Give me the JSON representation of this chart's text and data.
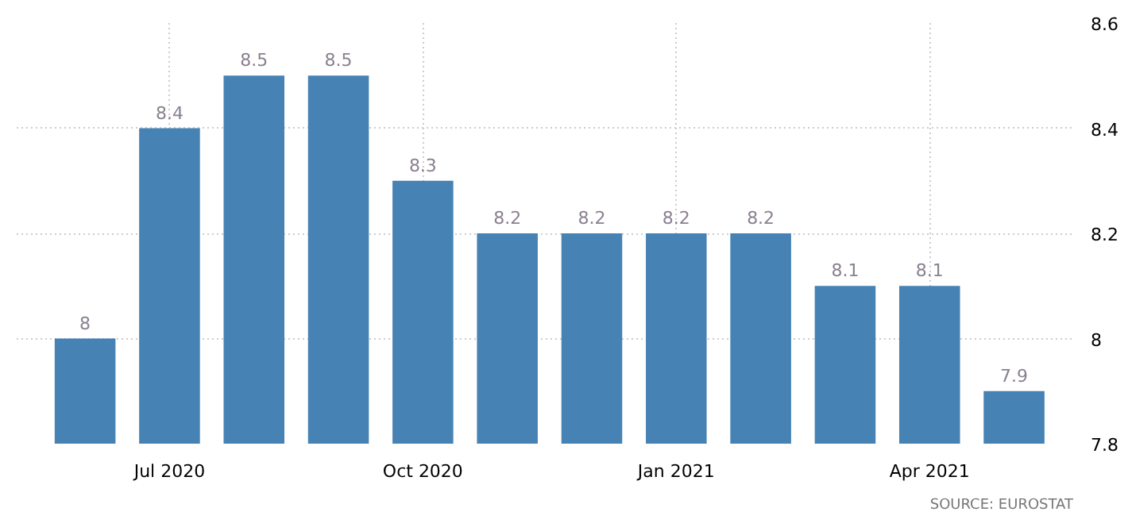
{
  "chart_data": {
    "type": "bar",
    "categories": [
      null,
      "Jul 2020",
      null,
      null,
      "Oct 2020",
      null,
      null,
      "Jan 2021",
      null,
      null,
      "Apr 2021",
      null
    ],
    "values": [
      8,
      8.4,
      8.5,
      8.5,
      8.3,
      8.2,
      8.2,
      8.2,
      8.2,
      8.1,
      8.1,
      7.9
    ],
    "color": "#4682b4",
    "ylim": [
      7.8,
      8.6
    ],
    "yticks": [
      7.8,
      8,
      8.2,
      8.4,
      8.6
    ],
    "grid": true,
    "data_labels": true,
    "annotations": [
      "SOURCE: EUROSTAT"
    ]
  }
}
